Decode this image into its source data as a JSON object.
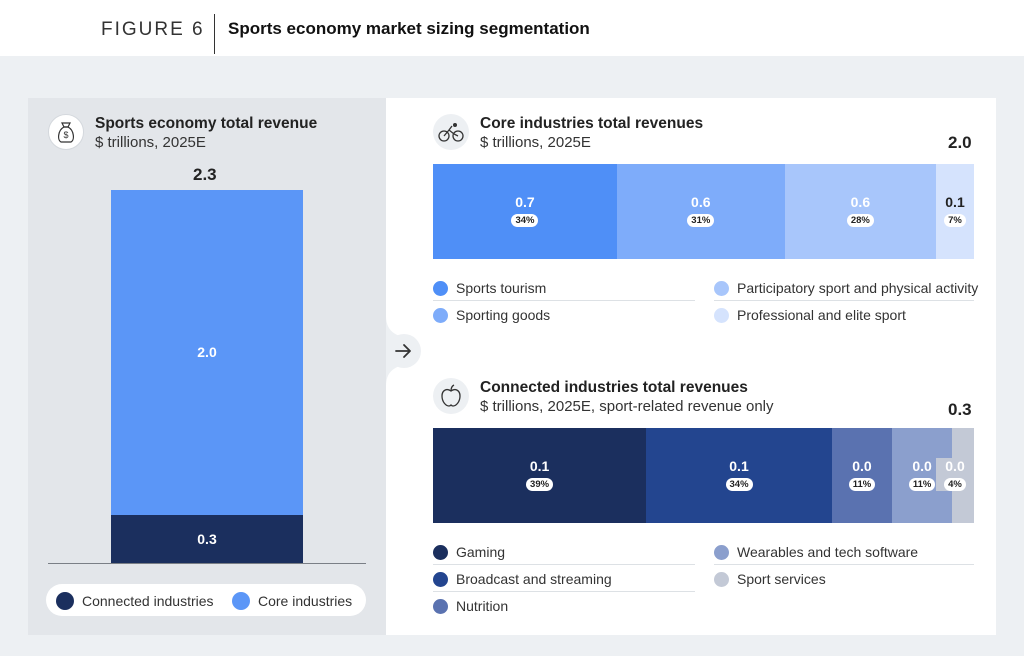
{
  "figure": {
    "label": "FIGURE 6",
    "title": "Sports economy market sizing segmentation"
  },
  "colors": {
    "connected_dark": "#1b2f5e",
    "core_blue": "#5b96f7",
    "sports_tourism": "#4f8ff7",
    "sporting_goods": "#7eacfa",
    "participatory": "#a8c6fb",
    "professional": "#d5e3fd",
    "gaming": "#1b2f5e",
    "broadcast": "#23458f",
    "nutrition": "#5a72b0",
    "wearables": "#8b9fcd",
    "sport_services": "#c3c9d6"
  },
  "icons": {
    "left": "money-bag-icon",
    "core": "cyclist-icon",
    "connected": "apple-icon",
    "arrow": "arrow-right-icon"
  },
  "chart_data": [
    {
      "type": "bar",
      "title": "Sports economy total revenue",
      "subtitle": "$ trillions, 2025E",
      "total": "2.3",
      "series": [
        {
          "name": "Connected industries",
          "value": 0.3,
          "label": "0.3"
        },
        {
          "name": "Core industries",
          "value": 2.0,
          "label": "2.0"
        }
      ],
      "legend": [
        "Connected industries",
        "Core industries"
      ]
    },
    {
      "type": "bar",
      "title": "Core industries total revenues",
      "subtitle": "$ trillions, 2025E",
      "total": "2.0",
      "series": [
        {
          "name": "Sports tourism",
          "value": "0.7",
          "pct": "34%",
          "share": 34
        },
        {
          "name": "Sporting goods",
          "value": "0.6",
          "pct": "31%",
          "share": 31
        },
        {
          "name": "Participatory sport and physical activity",
          "value": "0.6",
          "pct": "28%",
          "share": 28
        },
        {
          "name": "Professional and elite sport",
          "value": "0.1",
          "pct": "7%",
          "share": 7
        }
      ]
    },
    {
      "type": "bar",
      "title": "Connected industries total revenues",
      "subtitle": "$ trillions, 2025E, sport-related revenue only",
      "total": "0.3",
      "series": [
        {
          "name": "Gaming",
          "value": "0.1",
          "pct": "39%",
          "share": 39
        },
        {
          "name": "Broadcast and streaming",
          "value": "0.1",
          "pct": "34%",
          "share": 34
        },
        {
          "name": "Nutrition",
          "value": "0.0",
          "pct": "11%",
          "share": 11
        },
        {
          "name": "Wearables and tech software",
          "value": "0.0",
          "pct": "11%",
          "share": 11
        },
        {
          "name": "Sport services",
          "value": "0.0",
          "pct": "4%",
          "share": 4
        }
      ]
    }
  ]
}
